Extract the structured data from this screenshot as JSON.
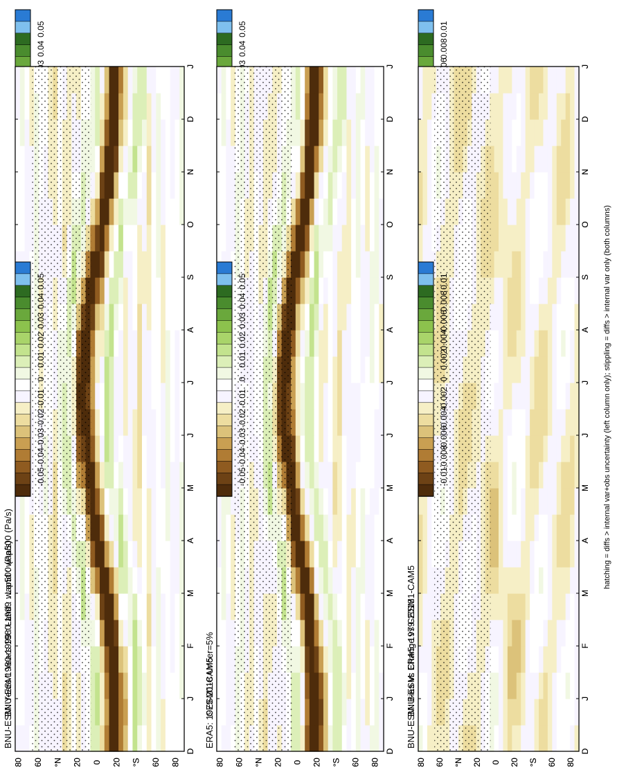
{
  "figure": {
    "footnote": "hatching = diffs > internal var+obs uncertainty (left column only); stippling = diffs > internal var only (both columns)"
  },
  "axis_labels": {
    "months": [
      "D",
      "J",
      "F",
      "M",
      "A",
      "M",
      "J",
      "J",
      "A",
      "S",
      "O",
      "N",
      "D",
      "J"
    ],
    "latitudes": [
      "80",
      "60",
      "°N",
      "20",
      "0",
      "20",
      "°S",
      "60",
      "80"
    ]
  },
  "colorbars": [
    {
      "id": "mean",
      "labels": [
        "0.05",
        "0.04",
        "0.03",
        "0.02",
        "0.01",
        "0",
        "-0.01",
        "-0.02",
        "-0.03",
        "-0.04",
        "-0.05"
      ]
    },
    {
      "id": "diff",
      "labels": [
        "0.01",
        "0.008",
        "0.006",
        "0.004",
        "0.002",
        "0",
        "-0.002",
        "-0.004",
        "-0.006",
        "-0.008",
        "-0.01"
      ]
    }
  ],
  "colors": {
    "scale": [
      "#2a7bd4",
      "#7fc0ee",
      "#2d6b21",
      "#4a8c2e",
      "#6aa83c",
      "#8cc24d",
      "#a9d46a",
      "#c3e38e",
      "#dcefb8",
      "#f1f8e3",
      "#ffffff",
      "#f7f4ff",
      "#f6efc6",
      "#eddda0",
      "#dcc27a",
      "#c99f52",
      "#b07c34",
      "#8f5b20",
      "#6d4215",
      "#4e2c0b"
    ]
  },
  "chart_data": [
    {
      "id": "bnu-mean-left",
      "type": "heatmap",
      "title": "BNU-ESM: Years 1980-1999 : Land : wap500 (Pa/s)",
      "x": "month",
      "y": "latitude",
      "colorbar": "mean",
      "zlim": [
        -0.05,
        0.05
      ],
      "overlay": [
        "hatching",
        "stippling"
      ]
    },
    {
      "id": "bnu-mean-right",
      "type": "heatmap",
      "title": "BNU-ESM: Years 1980-1999 : Land : wap500 (Pa/s)",
      "x": "month",
      "y": "latitude",
      "colorbar": "mean",
      "zlim": [
        -0.05,
        0.05
      ],
      "overlay": [
        "stippling"
      ]
    },
    {
      "id": "era5",
      "type": "heatmap",
      "title": "ERA5: 1979-2018 Uncer=5%",
      "x": "month",
      "y": "latitude",
      "colorbar": "mean",
      "zlim": [
        -0.05,
        0.05
      ],
      "overlay": [
        "hatching",
        "stippling"
      ]
    },
    {
      "id": "cesm",
      "type": "heatmap",
      "title": "CESM1-CAM5",
      "x": "month",
      "y": "latitude",
      "colorbar": "mean",
      "zlim": [
        -0.05,
        0.05
      ],
      "overlay": [
        "stippling"
      ]
    },
    {
      "id": "bias",
      "type": "heatmap",
      "title": "BNU-ESM: Bias vs ERA5: 1979-2018",
      "x": "month",
      "y": "latitude",
      "colorbar": "diff",
      "zlim": [
        -0.01,
        0.01
      ],
      "overlay": [
        "hatching",
        "stippling"
      ]
    },
    {
      "id": "change",
      "type": "heatmap",
      "title": "BNU-ESM: Change vs CESM1-CAM5",
      "x": "month",
      "y": "latitude",
      "colorbar": "diff",
      "zlim": [
        -0.01,
        0.01
      ],
      "overlay": [
        "stippling"
      ]
    }
  ]
}
